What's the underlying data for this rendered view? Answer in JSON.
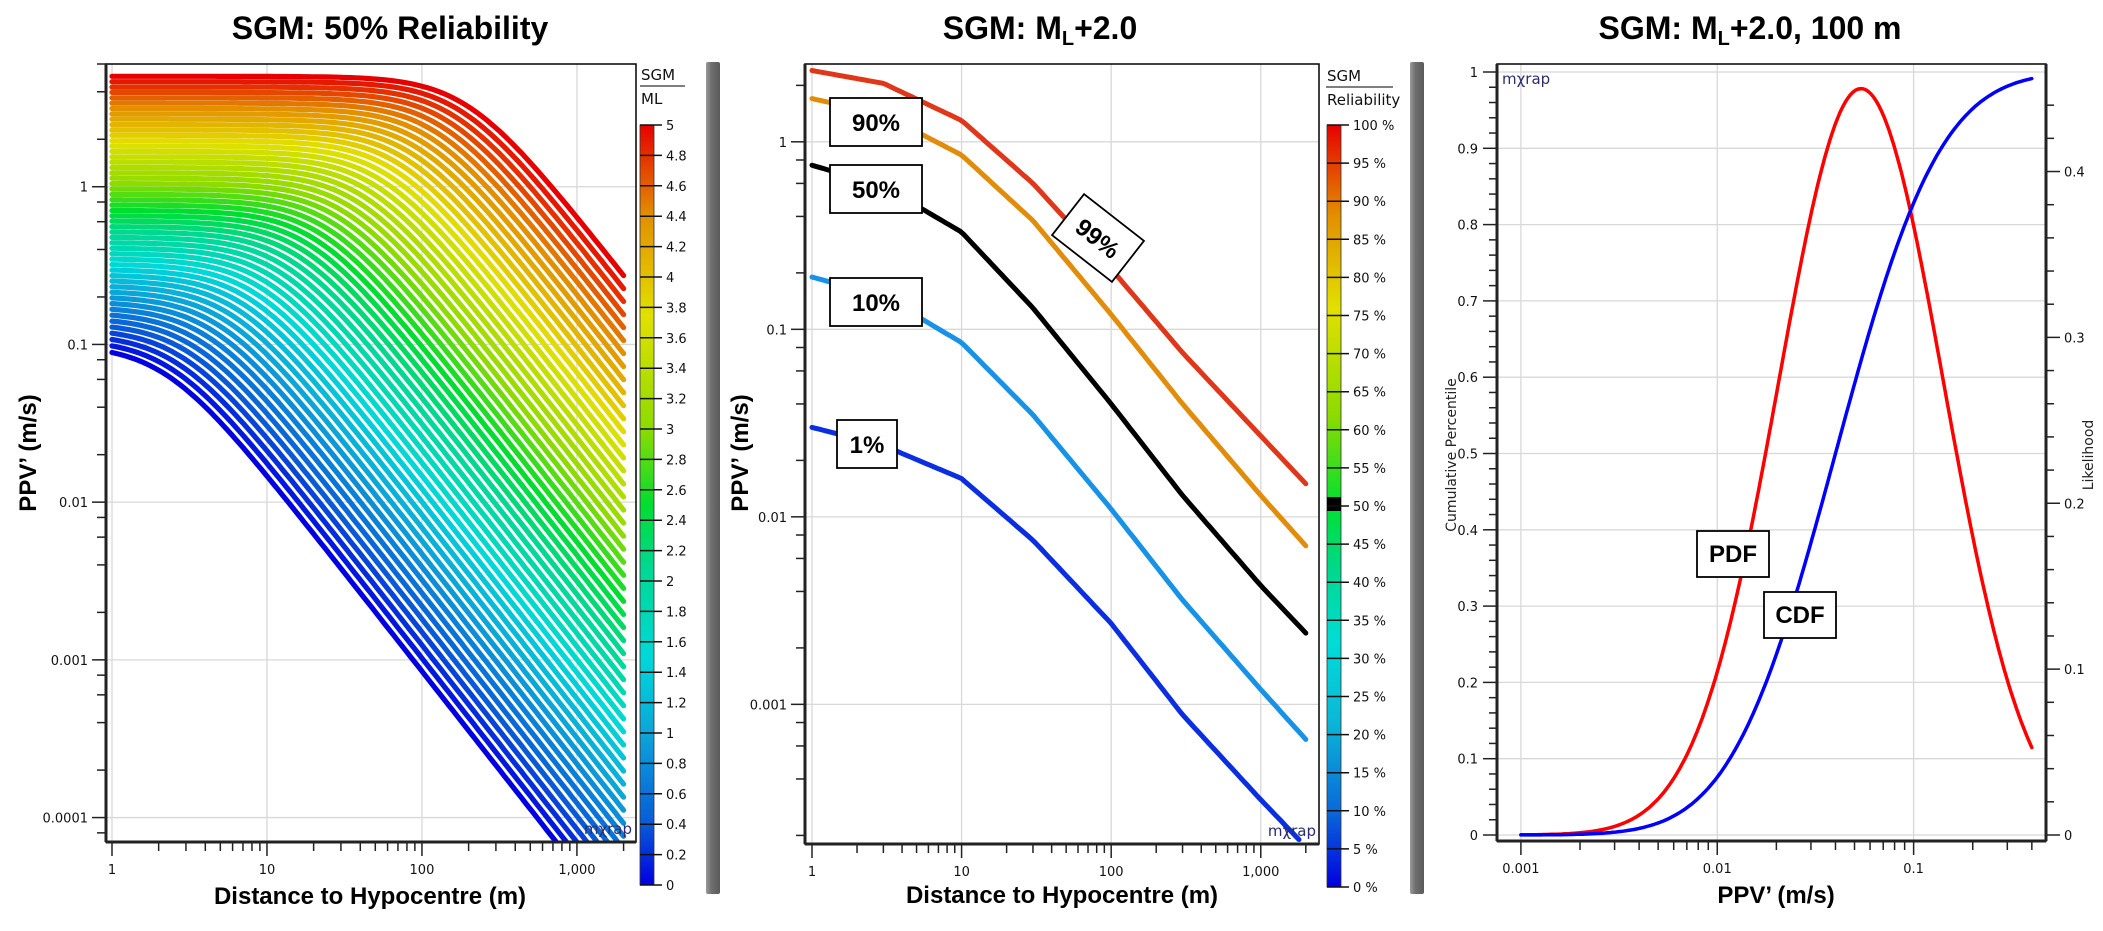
{
  "chart_data": [
    {
      "id": "left",
      "type": "line",
      "title_main": "SGM: 50% Reliability",
      "xlabel": "Distance to Hypocentre (m)",
      "ylabel": "PPV’ (m/s)",
      "x_scale": "log",
      "y_scale": "log",
      "xlim": [
        1,
        2200
      ],
      "ylim": [
        7e-05,
        6
      ],
      "x_ticks": [
        {
          "value": 1,
          "label": "1"
        },
        {
          "value": 10,
          "label": "10"
        },
        {
          "value": 100,
          "label": "100"
        },
        {
          "value": 1000,
          "label": "1,000"
        }
      ],
      "y_ticks": [
        {
          "value": 0.0001,
          "label": "0.0001"
        },
        {
          "value": 0.001,
          "label": "0.001"
        },
        {
          "value": 0.01,
          "label": "0.01"
        },
        {
          "value": 0.1,
          "label": "0.1"
        },
        {
          "value": 1,
          "label": "1"
        }
      ],
      "grid": true,
      "brand": "mχrap",
      "colorbar": {
        "title_top": "SGM",
        "title_bottom": "ML",
        "min": 0,
        "max": 5,
        "ticks": [
          "5",
          "4.8",
          "4.6",
          "4.4",
          "4.2",
          "4",
          "3.8",
          "3.6",
          "3.4",
          "3.2",
          "3",
          "2.8",
          "2.6",
          "2.4",
          "2.2",
          "2",
          "1.8",
          "1.6",
          "1.4",
          "1.2",
          "1",
          "0.8",
          "0.6",
          "0.4",
          "0.2",
          "0"
        ]
      },
      "series_family": {
        "param_name": "ML",
        "param_min": 0,
        "param_max": 5,
        "param_step": 0.1,
        "description": "PPV' vs distance, one curve per ML",
        "ppv_at_1m": {
          "ML_0": 0.1,
          "ML_1": 0.47,
          "ML_2": 1.2,
          "ML_5": 5.0
        },
        "ppv_at_2000m": {
          "ML_0": 9e-05,
          "ML_5": 0.38
        }
      }
    },
    {
      "id": "middle",
      "type": "line",
      "title_main": "SGM: M",
      "title_sub": "L",
      "title_rest": "+2.0",
      "xlabel": "Distance to Hypocentre (m)",
      "ylabel": "PPV’ (m/s)",
      "x_scale": "log",
      "y_scale": "log",
      "xlim": [
        1,
        2200
      ],
      "ylim": [
        0.00018,
        2.6
      ],
      "x_ticks": [
        {
          "value": 1,
          "label": "1"
        },
        {
          "value": 10,
          "label": "10"
        },
        {
          "value": 100,
          "label": "100"
        },
        {
          "value": 1000,
          "label": "1,000"
        }
      ],
      "y_ticks": [
        {
          "value": 0.001,
          "label": "0.001"
        },
        {
          "value": 0.01,
          "label": "0.01"
        },
        {
          "value": 0.1,
          "label": "0.1"
        },
        {
          "value": 1,
          "label": "1"
        }
      ],
      "grid": true,
      "brand": "mχrap",
      "colorbar": {
        "title_top": "SGM",
        "title_bottom": "Reliability",
        "ticks": [
          "100 %",
          "95 %",
          "90 %",
          "85 %",
          "80 %",
          "75 %",
          "70 %",
          "65 %",
          "60 %",
          "55 %",
          "50 %",
          "45 %",
          "40 %",
          "35 %",
          "30 %",
          "25 %",
          "20 %",
          "15 %",
          "10 %",
          "5 %",
          "0 %"
        ],
        "highlight": "50 %"
      },
      "series": [
        {
          "name": "99%",
          "color": "#e0361a",
          "x": [
            1,
            3,
            10,
            30,
            100,
            300,
            1000,
            2000
          ],
          "y": [
            2.4,
            2.05,
            1.3,
            0.6,
            0.21,
            0.075,
            0.027,
            0.015
          ]
        },
        {
          "name": "90%",
          "color": "#e28c0b",
          "x": [
            1,
            3,
            10,
            30,
            100,
            300,
            1000,
            2000
          ],
          "y": [
            1.7,
            1.4,
            0.85,
            0.38,
            0.12,
            0.04,
            0.013,
            0.007
          ]
        },
        {
          "name": "50%",
          "color": "#000000",
          "x": [
            1,
            3,
            10,
            30,
            100,
            300,
            1000,
            2000
          ],
          "y": [
            0.75,
            0.58,
            0.33,
            0.13,
            0.04,
            0.013,
            0.0043,
            0.0024
          ]
        },
        {
          "name": "10%",
          "color": "#1892e6",
          "x": [
            1,
            3,
            10,
            30,
            100,
            300,
            1000,
            2000
          ],
          "y": [
            0.19,
            0.15,
            0.085,
            0.035,
            0.011,
            0.0036,
            0.0012,
            0.00065
          ]
        },
        {
          "name": "1%",
          "color": "#0a2ee0",
          "x": [
            1,
            3,
            10,
            30,
            100,
            300,
            1000,
            1800
          ],
          "y": [
            0.03,
            0.024,
            0.016,
            0.0075,
            0.0027,
            0.00088,
            0.00031,
            0.00019
          ]
        }
      ],
      "labels": [
        {
          "text": "90%",
          "series": "90%"
        },
        {
          "text": "50%",
          "series": "50%"
        },
        {
          "text": "10%",
          "series": "10%"
        },
        {
          "text": "1%",
          "series": "1%"
        },
        {
          "text": "99%",
          "series": "99%"
        }
      ]
    },
    {
      "id": "right",
      "type": "line",
      "title_main": "SGM: M",
      "title_sub": "L",
      "title_rest": "+2.0, 100 m",
      "xlabel": "PPV’ (m/s)",
      "ylabel_left": "Cumulative Percentile",
      "ylabel_right": "Likelihood",
      "x_scale": "log",
      "xlim": [
        0.00088,
        0.42
      ],
      "ylim_left": [
        0,
        1
      ],
      "ylim_right": [
        0,
        0.45
      ],
      "x_ticks": [
        {
          "value": 0.001,
          "label": "0.001"
        },
        {
          "value": 0.01,
          "label": "0.01"
        },
        {
          "value": 0.1,
          "label": "0.1"
        }
      ],
      "y_ticks_left": [
        {
          "value": 0,
          "label": "0"
        },
        {
          "value": 0.1,
          "label": "0.1"
        },
        {
          "value": 0.2,
          "label": "0.2"
        },
        {
          "value": 0.3,
          "label": "0.3"
        },
        {
          "value": 0.4,
          "label": "0.4"
        },
        {
          "value": 0.5,
          "label": "0.5"
        },
        {
          "value": 0.6,
          "label": "0.6"
        },
        {
          "value": 0.7,
          "label": "0.7"
        },
        {
          "value": 0.8,
          "label": "0.8"
        },
        {
          "value": 0.9,
          "label": "0.9"
        },
        {
          "value": 1,
          "label": "1"
        }
      ],
      "y_ticks_right": [
        {
          "value": 0,
          "label": "0"
        },
        {
          "value": 0.1,
          "label": "0.1"
        },
        {
          "value": 0.2,
          "label": "0.2"
        },
        {
          "value": 0.3,
          "label": "0.3"
        },
        {
          "value": 0.4,
          "label": "0.4"
        }
      ],
      "grid": true,
      "brand": "mχrap",
      "series": [
        {
          "name": "PDF",
          "color": "#ff0000",
          "axis": "right",
          "distribution": "lognormal",
          "median": 0.054,
          "log10_sigma": 0.42,
          "peak": 0.45,
          "x_range": [
            0.001,
            0.4
          ]
        },
        {
          "name": "CDF",
          "color": "#0000ff",
          "axis": "left",
          "distribution": "lognormal",
          "median": 0.04,
          "log10_sigma": 0.42,
          "x_range": [
            0.001,
            0.4
          ]
        }
      ],
      "labels": [
        {
          "text": "PDF",
          "series": "PDF"
        },
        {
          "text": "CDF",
          "series": "CDF"
        }
      ]
    }
  ]
}
